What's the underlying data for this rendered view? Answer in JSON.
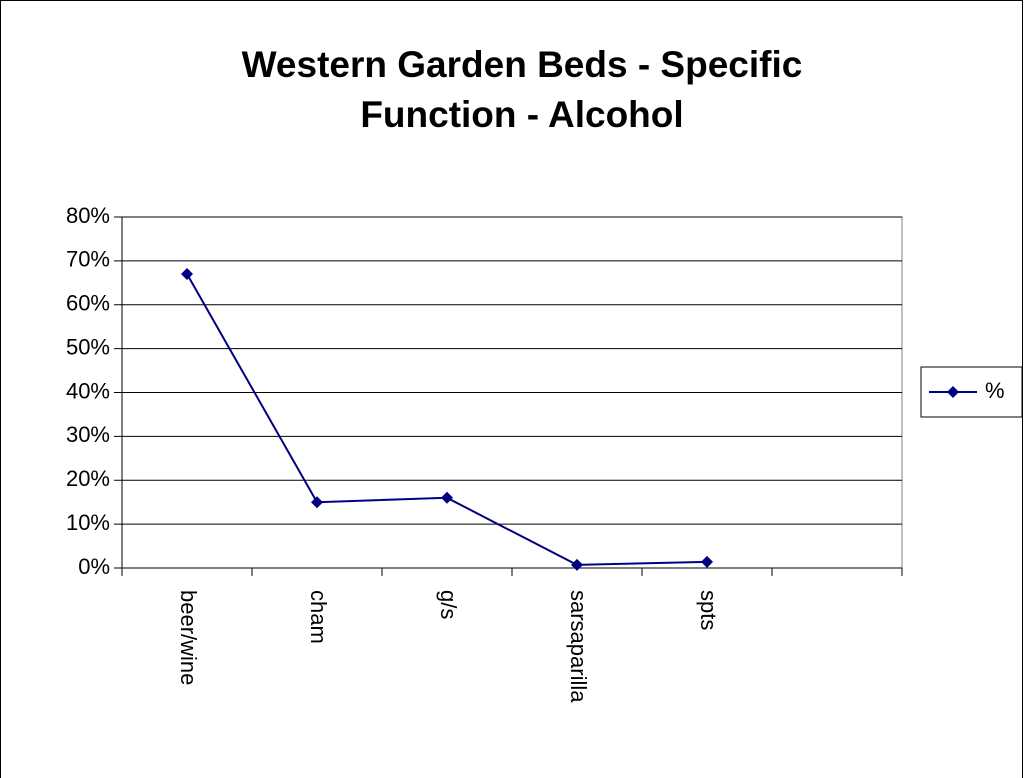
{
  "chart_data": {
    "type": "line",
    "title": "Western Garden Beds - Specific Function - Alcohol",
    "categories": [
      "beer/wine",
      "cham",
      "g/s",
      "sarsaparilla",
      "spts",
      null
    ],
    "series": [
      {
        "name": "%",
        "color": "#000080",
        "values": [
          67,
          15,
          16,
          0.7,
          1.4,
          null
        ]
      }
    ],
    "ylim": [
      0,
      80
    ],
    "yticks": [
      {
        "value": 0,
        "label": "0%"
      },
      {
        "value": 10,
        "label": "10%"
      },
      {
        "value": 20,
        "label": "20%"
      },
      {
        "value": 30,
        "label": "30%"
      },
      {
        "value": 40,
        "label": "40%"
      },
      {
        "value": 50,
        "label": "50%"
      },
      {
        "value": 60,
        "label": "60%"
      },
      {
        "value": 70,
        "label": "70%"
      },
      {
        "value": 80,
        "label": "80%"
      }
    ],
    "grid": true,
    "legend": "right"
  }
}
